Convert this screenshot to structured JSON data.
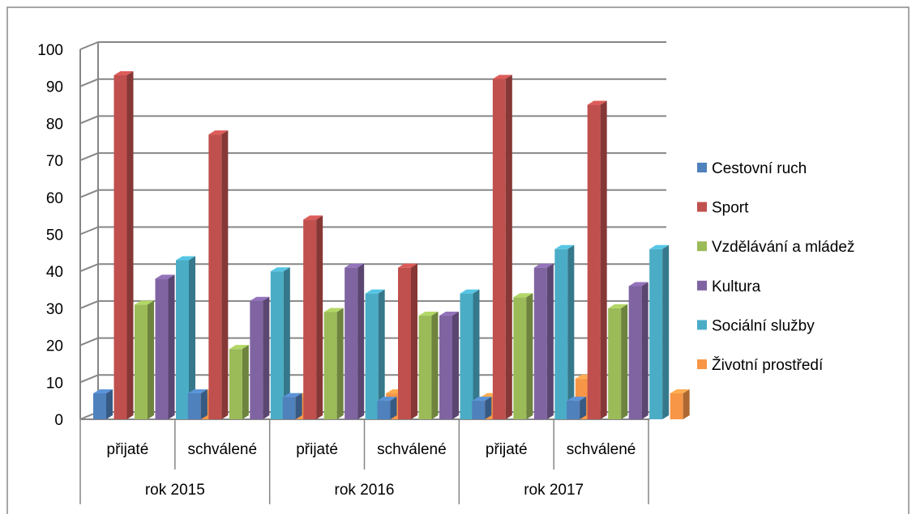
{
  "chart_data": {
    "type": "bar",
    "title": "",
    "xlabel": "",
    "ylabel": "",
    "ylim": [
      0,
      100
    ],
    "yticks": [
      0,
      10,
      20,
      30,
      40,
      50,
      60,
      70,
      80,
      90,
      100
    ],
    "grid": true,
    "legend_position": "right",
    "style": "3d-clustered-column",
    "categories": [
      "přijaté",
      "schválené",
      "přijaté",
      "schválené",
      "přijaté",
      "schválené"
    ],
    "groups": [
      {
        "label": "rok 2015",
        "span": 2
      },
      {
        "label": "rok 2016",
        "span": 2
      },
      {
        "label": "rok 2017",
        "span": 2
      }
    ],
    "series": [
      {
        "name": "Cestovní ruch",
        "color": "#4F81BD",
        "values": [
          7,
          7,
          6,
          5,
          5,
          5
        ]
      },
      {
        "name": "Sport",
        "color": "#C0504D",
        "values": [
          93,
          77,
          54,
          41,
          92,
          85
        ]
      },
      {
        "name": "Vzdělávání a mládež",
        "color": "#9BBB59",
        "values": [
          31,
          19,
          29,
          28,
          33,
          30
        ]
      },
      {
        "name": "Kultura",
        "color": "#8064A2",
        "values": [
          38,
          32,
          41,
          28,
          41,
          36
        ]
      },
      {
        "name": "Sociální služby",
        "color": "#4BACC6",
        "values": [
          43,
          40,
          34,
          34,
          46,
          46
        ]
      },
      {
        "name": "Životní prostředí",
        "color": "#F79646",
        "values": [
          7,
          6,
          7,
          6,
          11,
          7
        ]
      }
    ]
  }
}
